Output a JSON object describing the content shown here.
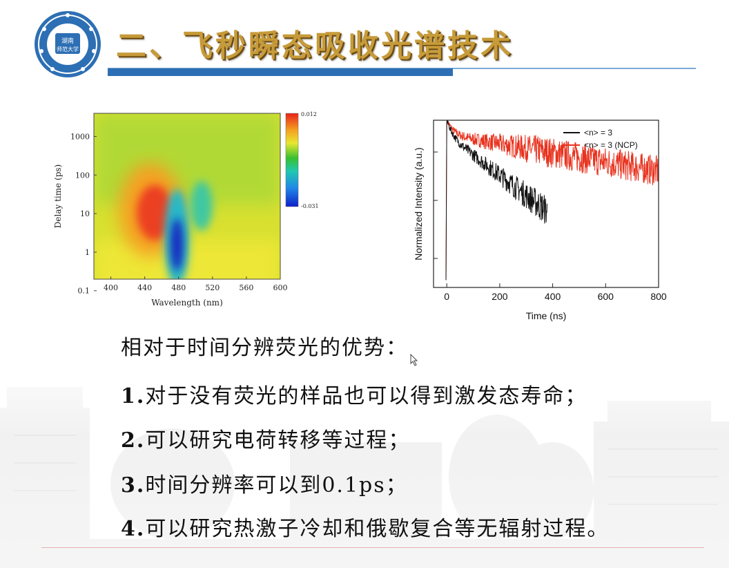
{
  "slide": {
    "title": "二、飞秒瞬态吸收光谱技术",
    "logo": {
      "icon": "university-seal-icon",
      "text_line1": "湖南",
      "text_line2": "师范大学",
      "color": "#2d6fb4"
    },
    "accent_color": "#2d6fb4",
    "title_color": "#c79b3a"
  },
  "advantages": {
    "heading": "相对于时间分辨荧光的优势：",
    "items": [
      {
        "num": "1.",
        "text": "对于没有荧光的样品也可以得到激发态寿命；"
      },
      {
        "num": "2.",
        "text": "可以研究电荷转移等过程；"
      },
      {
        "num": "3.",
        "text": "时间分辨率可以到0.1ps；"
      },
      {
        "num": "4.",
        "text": "可以研究热激子冷却和俄歇复合等无辐射过程。"
      }
    ]
  },
  "chart_data": [
    {
      "type": "heatmap",
      "xlabel": "Wavelength (nm)",
      "ylabel": "Delay time (ps)",
      "x_ticks": [
        "400",
        "440",
        "480",
        "520",
        "560",
        "600"
      ],
      "y_ticks": [
        "0.1",
        "1",
        "10",
        "100",
        "1000"
      ],
      "xlim": [
        380,
        600
      ],
      "ylim_log10": [
        -0.7,
        3.6
      ],
      "y_scale": "log",
      "colorbar": {
        "max_label": "0.012",
        "min_label": "-0.031",
        "max": 0.012,
        "min": -0.031
      },
      "features": [
        {
          "name": "positive band",
          "x_center": 447,
          "log_y_center": 1.1,
          "value": 0.012
        },
        {
          "name": "negative band",
          "x_center": 478,
          "log_y_center": 0.2,
          "value": -0.031
        },
        {
          "name": "negative band",
          "x_center": 507,
          "log_y_center": 1.2,
          "value": -0.012
        }
      ]
    },
    {
      "type": "line",
      "xlabel": "Time (ns)",
      "ylabel": "Normalized Intensity (a.u.)",
      "x_ticks": [
        "0",
        "200",
        "400",
        "600",
        "800"
      ],
      "xlim": [
        -50,
        800
      ],
      "y_scale": "log",
      "legend": "top-right",
      "series": [
        {
          "name": "<n> = 3",
          "color": "#111111",
          "decay_tau_fast_ns": 15,
          "decay_tau_slow_ns": 90,
          "end_ns": 380
        },
        {
          "name": "<n> = 3 (NCP)",
          "color": "#e8321e",
          "decay_tau_fast_ns": 20,
          "decay_tau_slow_ns": 400,
          "end_ns": 800
        }
      ]
    }
  ]
}
